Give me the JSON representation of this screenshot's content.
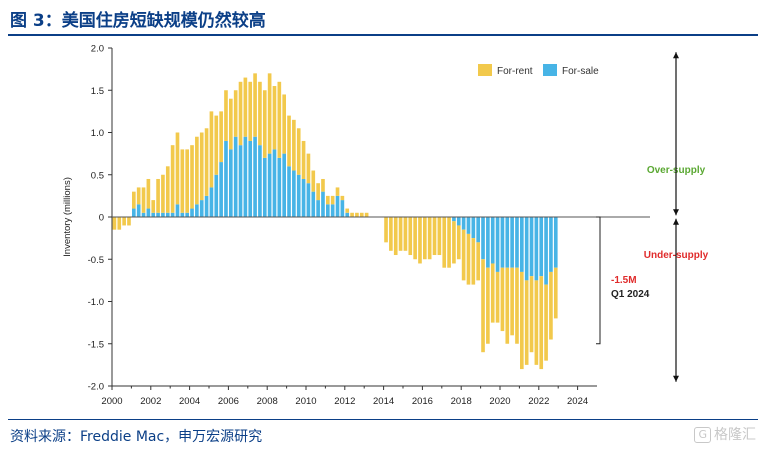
{
  "header": {
    "title": "图 3：美国住房短缺规模仍然较高"
  },
  "footer": {
    "source": "资料来源：Freddie Mac，申万宏源研究",
    "watermark_icon": "G",
    "watermark_text": "格隆汇"
  },
  "colors": {
    "for_rent": "#f2c94c",
    "for_sale": "#47b4e6",
    "over_supply": "#5aa832",
    "under_supply": "#e02b2b",
    "title": "#0b3f87"
  },
  "chart_data": {
    "type": "bar",
    "stacked": true,
    "ylabel": "Inventory (millions)",
    "ylim": [
      -2.0,
      2.0
    ],
    "yticks": [
      2.0,
      1.5,
      1.0,
      0.5,
      0,
      -0.5,
      -1.0,
      -1.5,
      -2.0
    ],
    "yticklabels": [
      "2.0",
      "1.5",
      "1.0",
      "0.5",
      "0",
      "-0.5",
      "-1.0",
      "-1.5",
      "-2.0"
    ],
    "xlim": [
      2000,
      2025
    ],
    "xticks": [
      2000,
      2002,
      2004,
      2006,
      2008,
      2010,
      2012,
      2014,
      2016,
      2018,
      2020,
      2022,
      2024
    ],
    "xticklabels": [
      "2000",
      "2002",
      "2004",
      "2006",
      "2008",
      "2010",
      "2012",
      "2014",
      "2016",
      "2018",
      "2020",
      "2022",
      "2024"
    ],
    "grid": false,
    "legend_position": "top-right",
    "x_start": 2000.0,
    "x_step": 0.25,
    "series": [
      {
        "name": "For-rent",
        "values": [
          -0.15,
          -0.15,
          -0.1,
          -0.1,
          0.2,
          0.2,
          0.3,
          0.35,
          0.15,
          0.4,
          0.45,
          0.55,
          0.8,
          0.85,
          0.75,
          0.75,
          0.75,
          0.8,
          0.8,
          0.8,
          0.9,
          0.7,
          0.6,
          0.6,
          0.6,
          0.55,
          0.75,
          0.7,
          0.7,
          0.75,
          0.75,
          0.8,
          0.95,
          0.75,
          0.9,
          0.7,
          0.6,
          0.6,
          0.55,
          0.45,
          0.35,
          0.25,
          0.2,
          0.15,
          0.1,
          0.1,
          0.1,
          0.05,
          0.05,
          0.05,
          0.05,
          0.05,
          0.05,
          0.0,
          0.0,
          0.0,
          -0.3,
          -0.4,
          -0.45,
          -0.4,
          -0.4,
          -0.45,
          -0.5,
          -0.55,
          -0.5,
          -0.5,
          -0.45,
          -0.45,
          -0.6,
          -0.6,
          -0.5,
          -0.4,
          -0.6,
          -0.6,
          -0.55,
          -0.45,
          -1.1,
          -0.9,
          -0.7,
          -0.6,
          -0.75,
          -0.9,
          -0.8,
          -0.9,
          -1.15,
          -1.0,
          -0.9,
          -1.0,
          -1.1,
          -0.9,
          -0.8,
          -0.6
        ],
        "color": "#f2c94c"
      },
      {
        "name": "For-sale",
        "values": [
          0.0,
          0.0,
          0.0,
          0.0,
          0.1,
          0.15,
          0.05,
          0.1,
          0.05,
          0.05,
          0.05,
          0.05,
          0.05,
          0.15,
          0.05,
          0.05,
          0.1,
          0.15,
          0.2,
          0.25,
          0.35,
          0.5,
          0.65,
          0.9,
          0.8,
          0.95,
          0.85,
          0.95,
          0.9,
          0.95,
          0.85,
          0.7,
          0.75,
          0.8,
          0.7,
          0.75,
          0.6,
          0.55,
          0.5,
          0.45,
          0.4,
          0.3,
          0.2,
          0.3,
          0.15,
          0.15,
          0.25,
          0.2,
          0.05,
          0.0,
          0.0,
          0.0,
          0.0,
          0.0,
          0.0,
          0.0,
          0.0,
          0.0,
          0.0,
          0.0,
          0.0,
          0.0,
          0.0,
          0.0,
          0.0,
          0.0,
          0.0,
          0.0,
          0.0,
          0.0,
          -0.05,
          -0.1,
          -0.15,
          -0.2,
          -0.25,
          -0.3,
          -0.5,
          -0.6,
          -0.55,
          -0.65,
          -0.6,
          -0.6,
          -0.6,
          -0.6,
          -0.65,
          -0.75,
          -0.7,
          -0.75,
          -0.7,
          -0.8,
          -0.65,
          -0.6
        ],
        "color": "#47b4e6"
      }
    ],
    "annotations": {
      "over_supply": "Over-supply",
      "under_supply": "Under-supply",
      "callout_value": "-1.5M",
      "callout_period": "Q1 2024"
    }
  }
}
